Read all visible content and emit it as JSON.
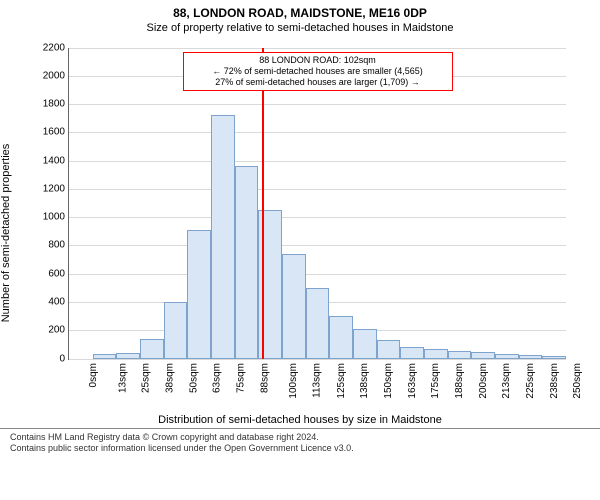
{
  "title": "88, LONDON ROAD, MAIDSTONE, ME16 0DP",
  "subtitle": "Size of property relative to semi-detached houses in Maidstone",
  "chart": {
    "type": "histogram",
    "ylabel": "Number of semi-detached properties",
    "xlabel": "Distribution of semi-detached houses by size in Maidstone",
    "ylim": [
      0,
      2200
    ],
    "ytick_step": 200,
    "yticks": [
      0,
      200,
      400,
      600,
      800,
      1000,
      1200,
      1400,
      1600,
      1800,
      2000,
      2200
    ],
    "xticks": [
      "0sqm",
      "13sqm",
      "25sqm",
      "38sqm",
      "50sqm",
      "63sqm",
      "75sqm",
      "88sqm",
      "100sqm",
      "113sqm",
      "125sqm",
      "138sqm",
      "150sqm",
      "163sqm",
      "175sqm",
      "188sqm",
      "200sqm",
      "213sqm",
      "225sqm",
      "238sqm",
      "250sqm"
    ],
    "xstep_sqm": 12.5,
    "xmax_sqm": 262.5,
    "values": [
      0,
      30,
      40,
      140,
      400,
      910,
      1720,
      1360,
      1050,
      740,
      500,
      300,
      210,
      130,
      80,
      70,
      55,
      50,
      30,
      25,
      20
    ],
    "bar_color": "#d9e6f5",
    "bar_border_color": "#7ea3cc",
    "bar_border_width": 1,
    "grid_color": "#d9d9d9",
    "background_color": "#ffffff",
    "marker_line_sqm": 102,
    "marker_line_color": "#ff0000",
    "callout": {
      "line1": "88 LONDON ROAD: 102sqm",
      "line2": "← 72% of semi-detached houses are smaller (4,565)",
      "line3": "27% of semi-detached houses are larger (1,709) →",
      "border_color": "#ff0000",
      "fontsize": 9
    }
  },
  "footer": {
    "line1": "Contains HM Land Registry data © Crown copyright and database right 2024.",
    "line2": "Contains public sector information licensed under the Open Government Licence v3.0."
  }
}
